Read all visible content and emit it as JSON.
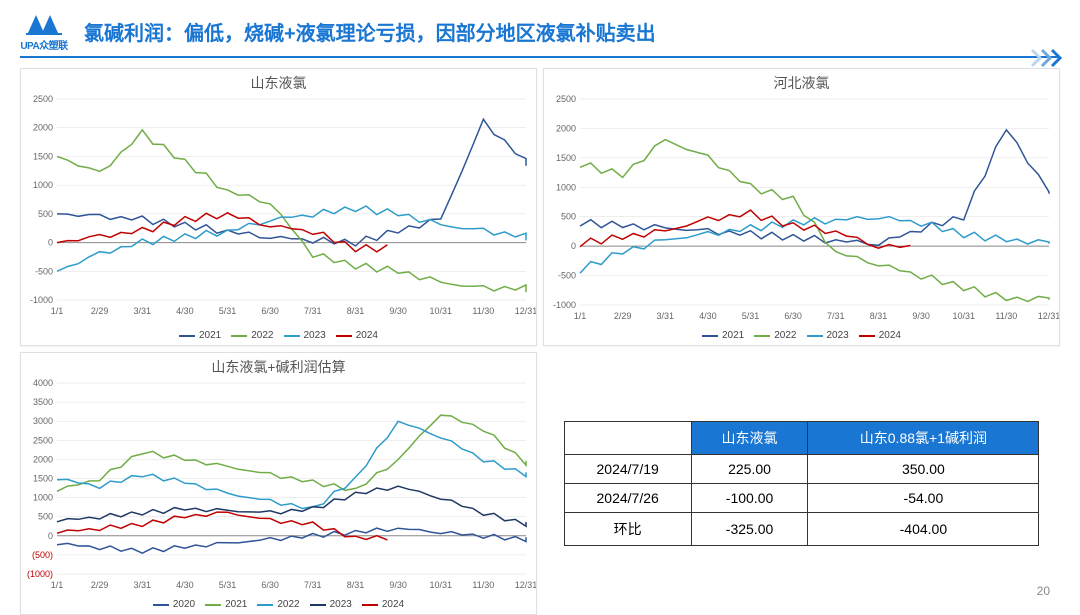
{
  "header": {
    "logo_text": "UPA众塑联",
    "title": "氯碱利润：偏低，烧碱+液氯理论亏损，因部分地区液氯补贴卖出"
  },
  "page_number": "20",
  "charts": [
    {
      "id": "chart-sd",
      "title": "山东液氯",
      "type": "line",
      "ylim": [
        -1000,
        2500
      ],
      "ytick_step": 500,
      "x_labels": [
        "1/1",
        "2/29",
        "3/31",
        "4/30",
        "5/31",
        "6/30",
        "7/31",
        "8/31",
        "9/30",
        "10/31",
        "11/30",
        "12/31"
      ],
      "background_color": "#ffffff",
      "grid_color": "#dddddd",
      "title_fontsize": 14,
      "label_fontsize": 9,
      "series": [
        {
          "name": "2021",
          "color": "#2f5597",
          "points": [
            500,
            450,
            400,
            300,
            200,
            100,
            50,
            0,
            200,
            400,
            2100,
            1400
          ]
        },
        {
          "name": "2022",
          "color": "#70ad47",
          "points": [
            1500,
            1200,
            1900,
            1400,
            900,
            700,
            -200,
            -400,
            -500,
            -700,
            -800,
            -800
          ]
        },
        {
          "name": "2023",
          "color": "#2e9cca",
          "points": [
            -500,
            -200,
            0,
            100,
            200,
            400,
            500,
            600,
            500,
            300,
            200,
            100
          ]
        },
        {
          "name": "2024",
          "color": "#c00000",
          "points": [
            0,
            100,
            200,
            400,
            500,
            300,
            200,
            -100,
            null,
            null,
            null,
            null
          ]
        }
      ],
      "legend": [
        "2021",
        "2022",
        "2023",
        "2024"
      ]
    },
    {
      "id": "chart-hb",
      "title": "河北液氯",
      "type": "line",
      "ylim": [
        -1000,
        2500
      ],
      "ytick_step": 500,
      "x_labels": [
        "1/1",
        "2/29",
        "3/31",
        "4/30",
        "5/31",
        "6/30",
        "7/31",
        "8/31",
        "9/30",
        "10/31",
        "11/30",
        "12/31"
      ],
      "background_color": "#ffffff",
      "grid_color": "#dddddd",
      "title_fontsize": 14,
      "label_fontsize": 9,
      "series": [
        {
          "name": "2021",
          "color": "#2f5597",
          "points": [
            400,
            350,
            300,
            250,
            200,
            150,
            100,
            50,
            300,
            500,
            2000,
            900
          ]
        },
        {
          "name": "2022",
          "color": "#70ad47",
          "points": [
            1400,
            1200,
            1800,
            1500,
            1000,
            800,
            -100,
            -300,
            -500,
            -700,
            -900,
            -900
          ]
        },
        {
          "name": "2023",
          "color": "#2e9cca",
          "points": [
            -400,
            -100,
            100,
            200,
            300,
            400,
            450,
            500,
            400,
            200,
            100,
            50
          ]
        },
        {
          "name": "2024",
          "color": "#c00000",
          "points": [
            50,
            150,
            250,
            450,
            550,
            350,
            250,
            0,
            null,
            null,
            null,
            null
          ]
        }
      ],
      "legend": [
        "2021",
        "2022",
        "2023",
        "2024"
      ]
    },
    {
      "id": "chart-profit",
      "title": "山东液氯+碱利润估算",
      "type": "line",
      "ylim": [
        -1000,
        4000
      ],
      "ytick_step": 500,
      "x_labels": [
        "1/1",
        "2/29",
        "3/31",
        "4/30",
        "5/31",
        "6/30",
        "7/31",
        "8/31",
        "9/30",
        "10/31",
        "11/30",
        "12/31"
      ],
      "background_color": "#ffffff",
      "grid_color": "#dddddd",
      "title_fontsize": 14,
      "label_fontsize": 9,
      "neg_label_color": "#c00000",
      "series": [
        {
          "name": "2020",
          "color": "#2f5597",
          "points": [
            -200,
            -300,
            -400,
            -300,
            -200,
            -100,
            0,
            100,
            200,
            100,
            0,
            -100
          ]
        },
        {
          "name": "2021",
          "color": "#70ad47",
          "points": [
            1200,
            1500,
            2200,
            2000,
            1800,
            1600,
            1400,
            1200,
            2000,
            3200,
            2800,
            1900
          ]
        },
        {
          "name": "2022",
          "color": "#2e9cca",
          "points": [
            1500,
            1300,
            1600,
            1400,
            1100,
            900,
            700,
            1500,
            3000,
            2600,
            2000,
            1600
          ]
        },
        {
          "name": "2023",
          "color": "#1f3864",
          "points": [
            400,
            500,
            600,
            700,
            650,
            600,
            700,
            1100,
            1300,
            1000,
            600,
            300
          ]
        },
        {
          "name": "2024",
          "color": "#c00000",
          "points": [
            100,
            200,
            300,
            500,
            600,
            400,
            300,
            -50,
            null,
            null,
            null,
            null
          ]
        }
      ],
      "legend": [
        "2020",
        "2021",
        "2022",
        "2023",
        "2024"
      ]
    }
  ],
  "table": {
    "type": "table",
    "header_bg": "#1976d2",
    "header_fg": "#ffffff",
    "border_color": "#333333",
    "fontsize": 14,
    "columns": [
      "",
      "山东液氯",
      "山东0.88氯+1碱利润"
    ],
    "rows": [
      [
        "2024/7/19",
        "225.00",
        "350.00"
      ],
      [
        "2024/7/26",
        "-100.00",
        "-54.00"
      ],
      [
        "环比",
        "-325.00",
        "-404.00"
      ]
    ]
  }
}
